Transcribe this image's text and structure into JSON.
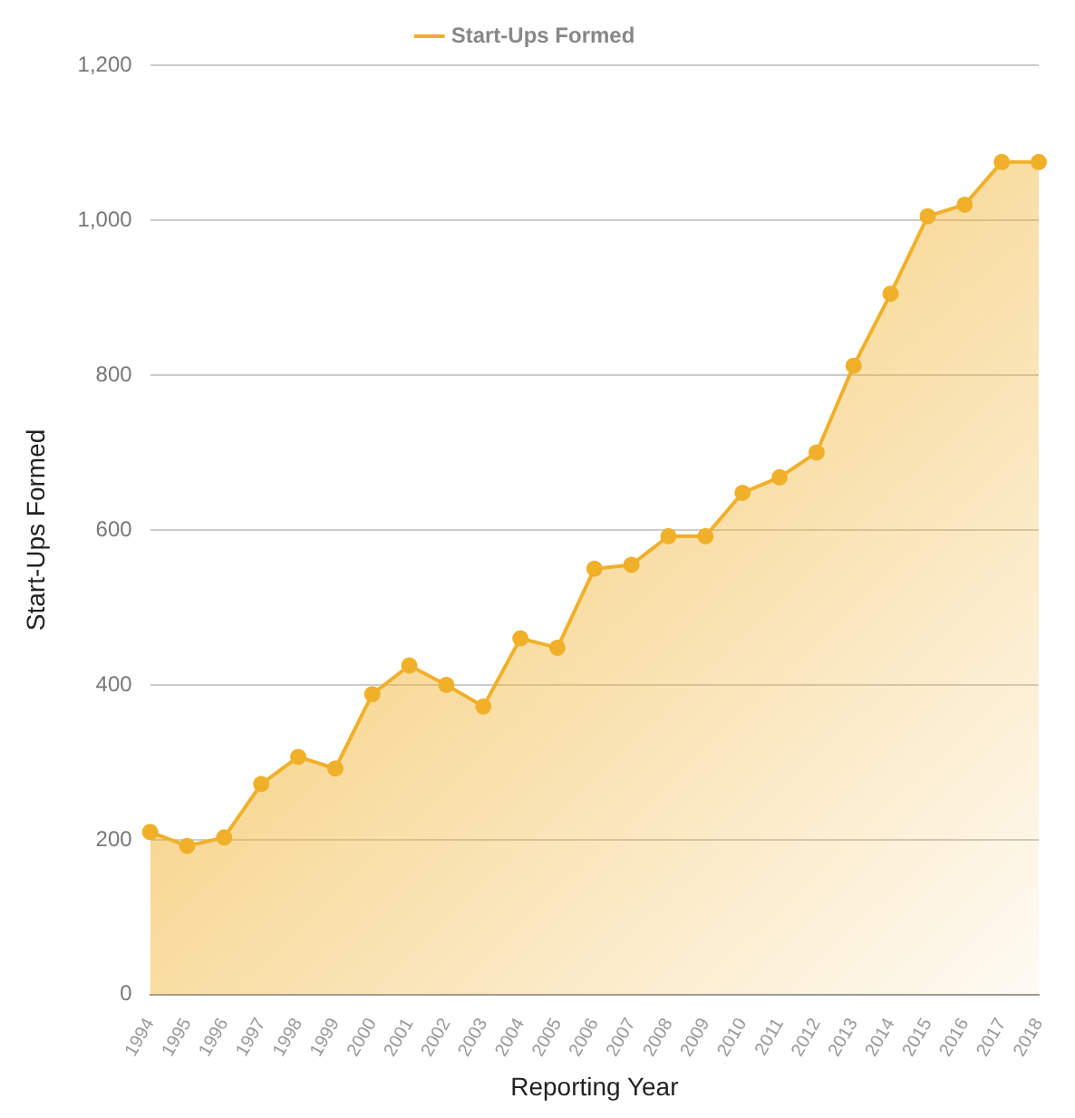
{
  "chart_data": {
    "type": "area",
    "xlabel": "Reporting Year",
    "ylabel": "Start-Ups Formed",
    "categories": [
      "1994",
      "1995",
      "1996",
      "1997",
      "1998",
      "1999",
      "2000",
      "2001",
      "2002",
      "2003",
      "2004",
      "2005",
      "2006",
      "2007",
      "2008",
      "2009",
      "2010",
      "2011",
      "2012",
      "2013",
      "2014",
      "2015",
      "2016",
      "2017",
      "2018"
    ],
    "series": [
      {
        "name": "Start-Ups Formed",
        "color": "#f0b02a",
        "values": [
          210,
          192,
          203,
          272,
          307,
          292,
          388,
          425,
          400,
          372,
          460,
          448,
          550,
          555,
          592,
          592,
          648,
          668,
          700,
          812,
          905,
          1005,
          1020,
          1075,
          1075
        ]
      }
    ],
    "ylim": [
      0,
      1200
    ],
    "yticks": [
      0,
      {
        "value": 200,
        "label": "200"
      },
      {
        "value": 400,
        "label": "400"
      },
      {
        "value": 600,
        "label": "600"
      },
      {
        "value": 800,
        "label": "800"
      },
      {
        "value": 1000,
        "label": "1,000"
      },
      {
        "value": 1200,
        "label": "1,200"
      }
    ],
    "grid": "y",
    "legend": "top",
    "marker": "circle",
    "line_style": "solid"
  }
}
